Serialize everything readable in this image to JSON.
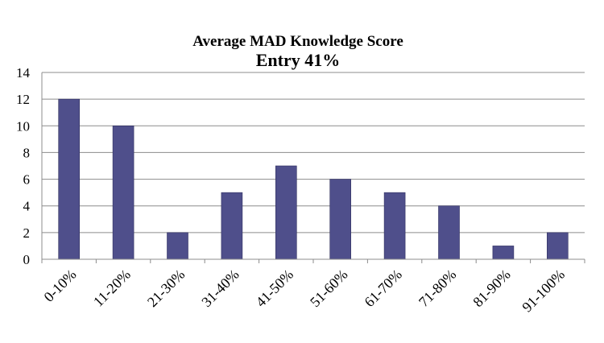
{
  "chart_data": {
    "type": "bar",
    "title": "Average MAD Knowledge Score",
    "subtitle": "Entry 41%",
    "xlabel": "",
    "ylabel": "",
    "categories": [
      "0-10%",
      "11-20%",
      "21-30%",
      "31-40%",
      "41-50%",
      "51-60%",
      "61-70%",
      "71-80%",
      "81-90%",
      "91-100%"
    ],
    "series": [
      {
        "values": [
          12,
          10,
          2,
          5,
          7,
          6,
          5,
          4,
          1,
          2
        ],
        "color": "#4f4f8b"
      }
    ],
    "ylim": [
      0,
      14
    ],
    "yticks": [
      0,
      2,
      4,
      6,
      8,
      10,
      12,
      14
    ],
    "grid": true,
    "legend": "none"
  }
}
